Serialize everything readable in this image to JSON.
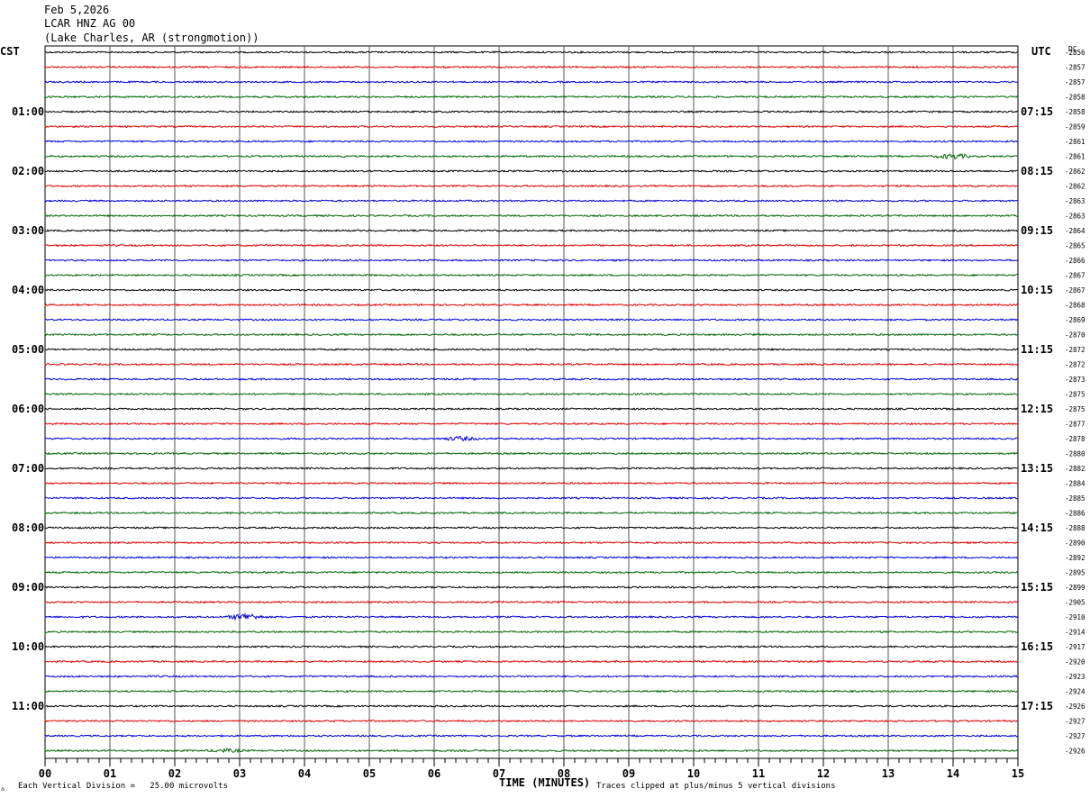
{
  "header": {
    "date": "Feb 5,2026",
    "station": "LCAR HNZ AG 00",
    "location": "(Lake Charles, AR (strongmotion))"
  },
  "chart_data": {
    "type": "line",
    "title": "LCAR HNZ AG 00",
    "left_timezone": "CST",
    "right_timezone": "UTC",
    "dc_label": "DC",
    "xlabel": "TIME (MINUTES)",
    "xlim": [
      0,
      15
    ],
    "x_ticks": [
      "00",
      "01",
      "02",
      "03",
      "04",
      "05",
      "06",
      "07",
      "08",
      "09",
      "10",
      "11",
      "12",
      "13",
      "14",
      "15"
    ],
    "trace_colors": [
      "#000000",
      "#dd0000",
      "#0000dd",
      "#006600"
    ],
    "left_hour_labels": [
      "01:00",
      "02:00",
      "03:00",
      "04:00",
      "05:00",
      "06:00",
      "07:00",
      "08:00",
      "09:00",
      "10:00",
      "11:00"
    ],
    "right_hour_labels": [
      "07:15",
      "08:15",
      "09:15",
      "10:15",
      "11:15",
      "12:15",
      "13:15",
      "14:15",
      "15:15",
      "16:15",
      "17:15"
    ],
    "dc_offsets": [
      "-2856",
      "-2857",
      "-2857",
      "-2858",
      "-2858",
      "-2859",
      "-2861",
      "-2861",
      "-2862",
      "-2862",
      "-2863",
      "-2863",
      "-2864",
      "-2865",
      "-2866",
      "-2867",
      "-2867",
      "-2868",
      "-2869",
      "-2870",
      "-2872",
      "-2872",
      "-2873",
      "-2875",
      "-2875",
      "-2877",
      "-2878",
      "-2880",
      "-2882",
      "-2884",
      "-2885",
      "-2886",
      "-2888",
      "-2890",
      "-2892",
      "-2895",
      "-2899",
      "-2905",
      "-2910",
      "-2914",
      "-2917",
      "-2920",
      "-2923",
      "-2924",
      "-2926",
      "-2927",
      "-2927",
      "-2926"
    ],
    "events": [
      {
        "row": 7,
        "minute": 14.0,
        "amplitude": 2.6
      },
      {
        "row": 26,
        "minute": 6.4,
        "amplitude": 2.0
      },
      {
        "row": 38,
        "minute": 3.1,
        "amplitude": 3.5
      },
      {
        "row": 47,
        "minute": 2.8,
        "amplitude": 1.5
      }
    ],
    "scale_note": "Each Vertical Division =   25.00 microvolts",
    "clip_note": "Traces clipped at plus/minus 5 vertical divisions"
  }
}
